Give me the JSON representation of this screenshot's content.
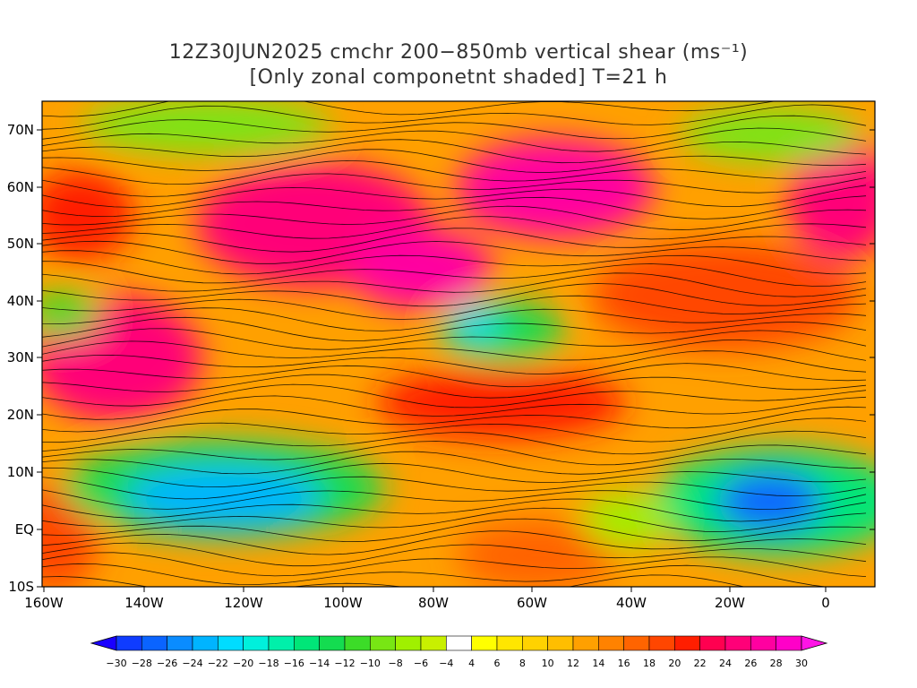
{
  "title_line1": "12Z30JUN2025 cmchr 200−850mb vertical shear (ms⁻¹)",
  "title_line2": "[Only zonal componetnt shaded] T=21 h",
  "lat_labels": [
    "70N",
    "60N",
    "50N",
    "40N",
    "30N",
    "20N",
    "10N",
    "EQ",
    "10S"
  ],
  "lon_labels": [
    "160W",
    "140W",
    "120W",
    "100W",
    "80W",
    "60W",
    "40W",
    "20W",
    "0"
  ],
  "colorbar": {
    "labels": [
      "−30",
      "−28",
      "−26",
      "−24",
      "−22",
      "−20",
      "−18",
      "−16",
      "−14",
      "−12",
      "−10",
      "−8",
      "−6",
      "−4",
      "4",
      "6",
      "8",
      "10",
      "12",
      "14",
      "16",
      "18",
      "20",
      "22",
      "24",
      "26",
      "28",
      "30"
    ],
    "colors": [
      "#1a00ff",
      "#0f3cff",
      "#0a64ff",
      "#0a8cff",
      "#00b4ff",
      "#00dcff",
      "#00f0dc",
      "#00f0aa",
      "#00e678",
      "#14dc50",
      "#3cdc28",
      "#78e614",
      "#a0f000",
      "#c8f000",
      "#ffffff",
      "#ffff00",
      "#ffe600",
      "#ffd200",
      "#ffbe00",
      "#ffa000",
      "#ff8200",
      "#ff6400",
      "#ff4600",
      "#ff1e00",
      "#ff0050",
      "#ff0078",
      "#ff00a0",
      "#ff00c8",
      "#ff14e6"
    ]
  }
}
